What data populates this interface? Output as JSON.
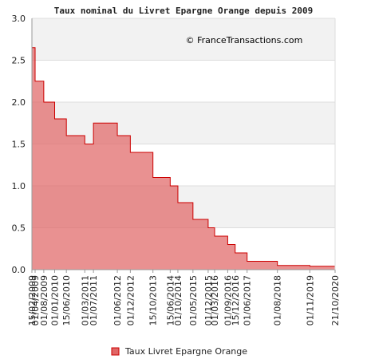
{
  "chart_data": {
    "type": "area",
    "title": "Taux nominal du Livret Epargne Orange depuis 2009",
    "copyright": "© FranceTransactions.com",
    "ylim": [
      0,
      3.0
    ],
    "yticks": [
      "0.0",
      "0.5",
      "1.0",
      "1.5",
      "2.0",
      "2.5",
      "3.0"
    ],
    "grid": true,
    "legend_position": "bottom-center",
    "colors": {
      "fill": "#e06666",
      "line": "#cc0000",
      "band": "#f2f2f2"
    },
    "x": [
      "15/02/2009",
      "01/04/2009",
      "01/08/2009",
      "01/01/2010",
      "15/06/2010",
      "01/03/2011",
      "01/07/2011",
      "01/06/2012",
      "01/12/2012",
      "15/10/2013",
      "15/06/2014",
      "01/10/2014",
      "01/05/2015",
      "01/12/2015",
      "01/03/2016",
      "01/09/2016",
      "15/12/2016",
      "01/06/2017",
      "01/08/2018",
      "01/11/2019",
      "21/10/2020"
    ],
    "series": [
      {
        "name": "Taux Livret Epargne Orange",
        "values": [
          2.65,
          2.25,
          2.0,
          1.8,
          1.6,
          1.5,
          1.75,
          1.6,
          1.4,
          1.1,
          1.0,
          0.8,
          0.6,
          0.5,
          0.4,
          0.3,
          0.2,
          0.1,
          0.05,
          0.04,
          0.04
        ]
      }
    ]
  }
}
